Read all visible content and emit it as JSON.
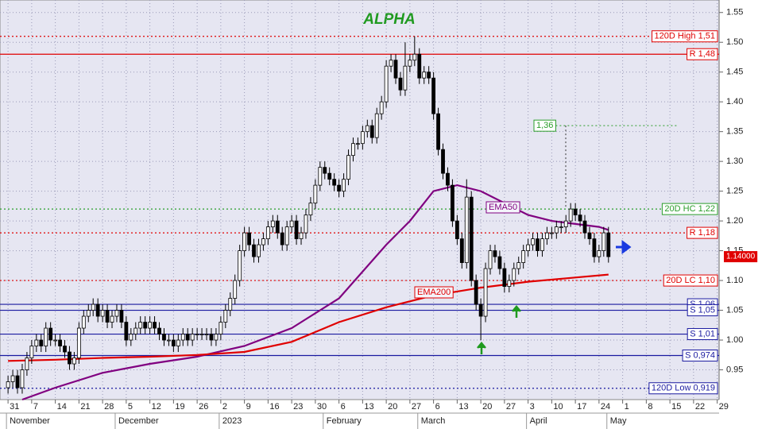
{
  "chart_data": {
    "type": "candlestick",
    "title": "ALPHA",
    "xlim": [
      -1.7,
      150.4
    ],
    "ylim": [
      0.9,
      1.571
    ],
    "xticks": [
      {
        "value": 0,
        "label": "31"
      },
      {
        "value": 5,
        "label": "7"
      },
      {
        "value": 10,
        "label": "14"
      },
      {
        "value": 15,
        "label": "21"
      },
      {
        "value": 20,
        "label": "28"
      },
      {
        "value": 25,
        "label": "5"
      },
      {
        "value": 30,
        "label": "12"
      },
      {
        "value": 35,
        "label": "19"
      },
      {
        "value": 40,
        "label": "26"
      },
      {
        "value": 45,
        "label": "2"
      },
      {
        "value": 50,
        "label": "9"
      },
      {
        "value": 55,
        "label": "16"
      },
      {
        "value": 60,
        "label": "23"
      },
      {
        "value": 65,
        "label": "30"
      },
      {
        "value": 70,
        "label": "6"
      },
      {
        "value": 75,
        "label": "13"
      },
      {
        "value": 80,
        "label": "20"
      },
      {
        "value": 85,
        "label": "27"
      },
      {
        "value": 90,
        "label": "6"
      },
      {
        "value": 95,
        "label": "13"
      },
      {
        "value": 100,
        "label": "20"
      },
      {
        "value": 105,
        "label": "27"
      },
      {
        "value": 110,
        "label": "3"
      },
      {
        "value": 115,
        "label": "10"
      },
      {
        "value": 120,
        "label": "17"
      },
      {
        "value": 125,
        "label": "24"
      },
      {
        "value": 130,
        "label": "1"
      },
      {
        "value": 135,
        "label": "8"
      },
      {
        "value": 140,
        "label": "15"
      },
      {
        "value": 145,
        "label": "22"
      },
      {
        "value": 150,
        "label": "29"
      }
    ],
    "month_labels": [
      {
        "value": 0,
        "label": "November"
      },
      {
        "value": 23,
        "label": "December"
      },
      {
        "value": 45,
        "label": "2023"
      },
      {
        "value": 67,
        "label": "February"
      },
      {
        "value": 87,
        "label": "March"
      },
      {
        "value": 110,
        "label": "April"
      },
      {
        "value": 127,
        "label": "May"
      }
    ],
    "yticks": [
      {
        "value": 0.95,
        "label": "0.95"
      },
      {
        "value": 1.0,
        "label": "1.00"
      },
      {
        "value": 1.05,
        "label": "1.05"
      },
      {
        "value": 1.1,
        "label": "1.10"
      },
      {
        "value": 1.15,
        "label": "1.15"
      },
      {
        "value": 1.2,
        "label": "1.20"
      },
      {
        "value": 1.25,
        "label": "1.25"
      },
      {
        "value": 1.3,
        "label": "1.30"
      },
      {
        "value": 1.35,
        "label": "1.35"
      },
      {
        "value": 1.4,
        "label": "1.40"
      },
      {
        "value": 1.45,
        "label": "1.45"
      },
      {
        "value": 1.5,
        "label": "1.50"
      },
      {
        "value": 1.55,
        "label": "1.55"
      }
    ],
    "grid": true,
    "up_color": "#ffffff",
    "down_color": "#000000",
    "open": [
      0.92,
      0.93,
      0.94,
      0.92,
      0.95,
      0.97,
      0.99,
      1.0,
      0.99,
      1.02,
      1.0,
      1.0,
      0.99,
      0.98,
      0.96,
      0.97,
      1.02,
      1.04,
      1.05,
      1.06,
      1.04,
      1.05,
      1.03,
      1.04,
      1.05,
      1.03,
      1.0,
      1.01,
      1.02,
      1.03,
      1.02,
      1.03,
      1.02,
      1.01,
      1.0,
      1.0,
      0.99,
      1.0,
      1.01,
      1.0,
      1.01,
      1.01,
      1.01,
      1.01,
      1.0,
      1.01,
      1.03,
      1.05,
      1.07,
      1.1,
      1.15,
      1.18,
      1.16,
      1.14,
      1.16,
      1.17,
      1.19,
      1.2,
      1.18,
      1.16,
      1.19,
      1.2,
      1.17,
      1.18,
      1.21,
      1.23,
      1.26,
      1.29,
      1.28,
      1.27,
      1.26,
      1.25,
      1.27,
      1.31,
      1.33,
      1.33,
      1.35,
      1.36,
      1.34,
      1.38,
      1.4,
      1.46,
      1.47,
      1.44,
      1.42,
      1.46,
      1.47,
      1.48,
      1.44,
      1.45,
      1.44,
      1.38,
      1.32,
      1.28,
      1.26,
      1.2,
      1.17,
      1.13,
      1.24,
      1.1,
      1.06,
      1.04,
      1.12,
      1.15,
      1.14,
      1.12,
      1.09,
      1.1,
      1.12,
      1.13,
      1.15,
      1.16,
      1.17,
      1.15,
      1.17,
      1.18,
      1.18,
      1.19,
      1.19,
      1.2,
      1.22,
      1.21,
      1.2,
      1.18,
      1.17,
      1.14,
      1.15,
      1.18
    ],
    "high": [
      0.94,
      0.95,
      0.95,
      0.96,
      0.98,
      1.0,
      1.01,
      1.01,
      1.03,
      1.03,
      1.01,
      1.01,
      1.0,
      0.99,
      0.98,
      1.03,
      1.05,
      1.06,
      1.07,
      1.07,
      1.06,
      1.06,
      1.05,
      1.06,
      1.06,
      1.04,
      1.02,
      1.03,
      1.04,
      1.04,
      1.04,
      1.04,
      1.03,
      1.02,
      1.01,
      1.01,
      1.01,
      1.02,
      1.02,
      1.02,
      1.02,
      1.02,
      1.02,
      1.02,
      1.02,
      1.04,
      1.06,
      1.08,
      1.11,
      1.16,
      1.19,
      1.19,
      1.17,
      1.17,
      1.18,
      1.2,
      1.21,
      1.21,
      1.19,
      1.2,
      1.21,
      1.21,
      1.19,
      1.22,
      1.24,
      1.27,
      1.3,
      1.3,
      1.29,
      1.28,
      1.27,
      1.28,
      1.32,
      1.34,
      1.34,
      1.36,
      1.37,
      1.37,
      1.39,
      1.41,
      1.47,
      1.48,
      1.48,
      1.45,
      1.5,
      1.48,
      1.51,
      1.49,
      1.46,
      1.46,
      1.45,
      1.39,
      1.33,
      1.29,
      1.27,
      1.21,
      1.18,
      1.27,
      1.25,
      1.11,
      1.07,
      1.13,
      1.16,
      1.16,
      1.15,
      1.13,
      1.11,
      1.13,
      1.14,
      1.16,
      1.17,
      1.18,
      1.18,
      1.18,
      1.19,
      1.19,
      1.2,
      1.2,
      1.21,
      1.23,
      1.23,
      1.22,
      1.21,
      1.19,
      1.18,
      1.16,
      1.19,
      1.19
    ],
    "low": [
      0.91,
      0.92,
      0.91,
      0.91,
      0.94,
      0.96,
      0.98,
      0.98,
      0.98,
      0.99,
      0.99,
      0.98,
      0.97,
      0.95,
      0.95,
      0.96,
      1.01,
      1.03,
      1.04,
      1.03,
      1.03,
      1.02,
      1.02,
      1.03,
      1.02,
      0.99,
      0.99,
      1.0,
      1.01,
      1.01,
      1.01,
      1.01,
      1.0,
      0.99,
      0.99,
      0.98,
      0.98,
      0.99,
      0.99,
      0.99,
      1.0,
      1.0,
      1.0,
      0.99,
      0.99,
      1.0,
      1.02,
      1.04,
      1.06,
      1.09,
      1.14,
      1.15,
      1.13,
      1.13,
      1.15,
      1.16,
      1.18,
      1.17,
      1.15,
      1.15,
      1.18,
      1.16,
      1.16,
      1.17,
      1.2,
      1.22,
      1.25,
      1.27,
      1.26,
      1.25,
      1.24,
      1.24,
      1.26,
      1.3,
      1.32,
      1.32,
      1.34,
      1.33,
      1.33,
      1.37,
      1.39,
      1.45,
      1.43,
      1.41,
      1.41,
      1.45,
      1.46,
      1.43,
      1.43,
      1.43,
      1.37,
      1.31,
      1.27,
      1.25,
      1.19,
      1.16,
      1.12,
      1.12,
      1.09,
      1.05,
      1.0,
      1.03,
      1.11,
      1.13,
      1.11,
      1.08,
      1.08,
      1.09,
      1.11,
      1.12,
      1.14,
      1.15,
      1.14,
      1.14,
      1.16,
      1.17,
      1.17,
      1.18,
      1.18,
      1.19,
      1.2,
      1.19,
      1.17,
      1.16,
      1.13,
      1.13,
      1.14,
      1.13
    ],
    "close": [
      0.93,
      0.94,
      0.92,
      0.95,
      0.97,
      0.99,
      1.0,
      0.99,
      1.02,
      1.0,
      1.0,
      0.99,
      0.98,
      0.96,
      0.97,
      1.02,
      1.04,
      1.05,
      1.06,
      1.04,
      1.05,
      1.03,
      1.04,
      1.05,
      1.03,
      1.0,
      1.01,
      1.02,
      1.03,
      1.02,
      1.03,
      1.02,
      1.01,
      1.0,
      1.0,
      0.99,
      1.0,
      1.01,
      1.0,
      1.01,
      1.01,
      1.01,
      1.01,
      1.0,
      1.01,
      1.03,
      1.05,
      1.07,
      1.1,
      1.15,
      1.18,
      1.16,
      1.14,
      1.16,
      1.17,
      1.19,
      1.2,
      1.18,
      1.16,
      1.19,
      1.2,
      1.17,
      1.18,
      1.21,
      1.23,
      1.26,
      1.29,
      1.28,
      1.27,
      1.26,
      1.25,
      1.27,
      1.31,
      1.33,
      1.33,
      1.35,
      1.36,
      1.34,
      1.38,
      1.4,
      1.46,
      1.47,
      1.44,
      1.42,
      1.46,
      1.47,
      1.48,
      1.44,
      1.45,
      1.44,
      1.38,
      1.32,
      1.28,
      1.26,
      1.2,
      1.17,
      1.13,
      1.24,
      1.1,
      1.06,
      1.04,
      1.12,
      1.15,
      1.14,
      1.12,
      1.09,
      1.1,
      1.12,
      1.13,
      1.15,
      1.16,
      1.17,
      1.15,
      1.17,
      1.18,
      1.18,
      1.19,
      1.19,
      1.2,
      1.22,
      1.21,
      1.2,
      1.18,
      1.17,
      1.14,
      1.15,
      1.18,
      1.14
    ],
    "series": [
      {
        "name": "EMA50",
        "color": "#800080",
        "x": [
          3,
          10,
          20,
          30,
          40,
          50,
          60,
          70,
          80,
          85,
          90,
          95,
          100,
          105,
          110,
          115,
          120,
          125,
          127
        ],
        "values": [
          0.9,
          0.92,
          0.945,
          0.96,
          0.972,
          0.99,
          1.02,
          1.07,
          1.16,
          1.2,
          1.25,
          1.26,
          1.25,
          1.23,
          1.21,
          1.2,
          1.195,
          1.19,
          1.185
        ]
      },
      {
        "name": "EMA200",
        "color": "#e00000",
        "x": [
          0,
          10,
          20,
          30,
          40,
          50,
          60,
          70,
          80,
          90,
          100,
          110,
          120,
          127
        ],
        "values": [
          0.965,
          0.967,
          0.97,
          0.972,
          0.975,
          0.98,
          0.997,
          1.03,
          1.055,
          1.075,
          1.088,
          1.098,
          1.105,
          1.11
        ]
      }
    ],
    "levels": [
      {
        "label": "120D High 1,51",
        "value": 1.51,
        "color": "#e00000",
        "style": "dotted"
      },
      {
        "label": "R 1,48",
        "value": 1.48,
        "color": "#e00000",
        "style": "solid"
      },
      {
        "label": "20D HC 1,22",
        "value": 1.22,
        "color": "#2a9d2a",
        "style": "dotted"
      },
      {
        "label": "R 1,18",
        "value": 1.18,
        "color": "#e00000",
        "style": "dotted"
      },
      {
        "label": "20D LC 1,10",
        "value": 1.1,
        "color": "#e00000",
        "style": "dotted"
      },
      {
        "label": "S 1,06",
        "value": 1.06,
        "color": "#1a1aa0",
        "style": "solid"
      },
      {
        "label": "S 1,05",
        "value": 1.05,
        "color": "#1a1aa0",
        "style": "solid"
      },
      {
        "label": "S 1,01",
        "value": 1.01,
        "color": "#1a1aa0",
        "style": "solid"
      },
      {
        "label": "S 0,974",
        "value": 0.974,
        "color": "#1a1aa0",
        "style": "solid"
      },
      {
        "label": "120D Low 0,919",
        "value": 0.919,
        "color": "#1a1aa0",
        "style": "dotted"
      }
    ],
    "target": {
      "label": "1,36",
      "value": 1.36,
      "color": "#2a9d2a"
    },
    "last_price": {
      "label": "1.14000",
      "value": 1.14,
      "color": "#e00000"
    }
  }
}
